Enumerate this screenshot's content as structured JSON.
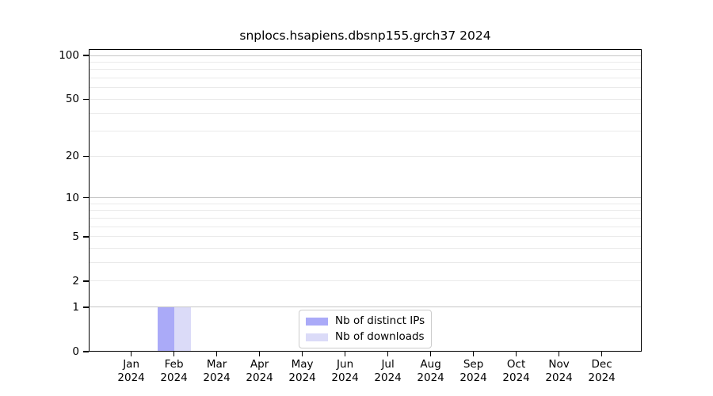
{
  "chart_data": {
    "type": "bar",
    "title": "snplocs.hsapiens.dbsnp155.grch37 2024",
    "x_axis": {
      "categories": [
        "Jan",
        "Feb",
        "Mar",
        "Apr",
        "May",
        "Jun",
        "Jul",
        "Aug",
        "Sep",
        "Oct",
        "Nov",
        "Dec"
      ],
      "year": "2024"
    },
    "y_axis": {
      "scale": "log10(1+v)",
      "ticks": [
        0,
        1,
        2,
        5,
        10,
        20,
        50,
        100
      ],
      "top_value": 110.5,
      "major_gridlines": [
        1,
        10,
        100
      ],
      "minor_gridlines": [
        2,
        3,
        4,
        5,
        6,
        7,
        8,
        9,
        20,
        30,
        40,
        50,
        60,
        70,
        80,
        90
      ]
    },
    "series": [
      {
        "name": "Nb of distinct IPs",
        "color": "#aaaaf8",
        "values": [
          0,
          1,
          0,
          0,
          0,
          0,
          0,
          0,
          0,
          0,
          0,
          0
        ]
      },
      {
        "name": "Nb of downloads",
        "color": "#dbdbf8",
        "values": [
          0,
          1,
          0,
          0,
          0,
          0,
          0,
          0,
          0,
          0,
          0,
          0
        ]
      }
    ],
    "legend": {
      "position": "inside-bottom-center"
    },
    "colors": {
      "major_grid": "#c6c6c6",
      "minor_grid": "#eaeaea",
      "spine": "#000000",
      "text": "#000000",
      "background": "#ffffff"
    },
    "grid": "horizontal-only"
  }
}
